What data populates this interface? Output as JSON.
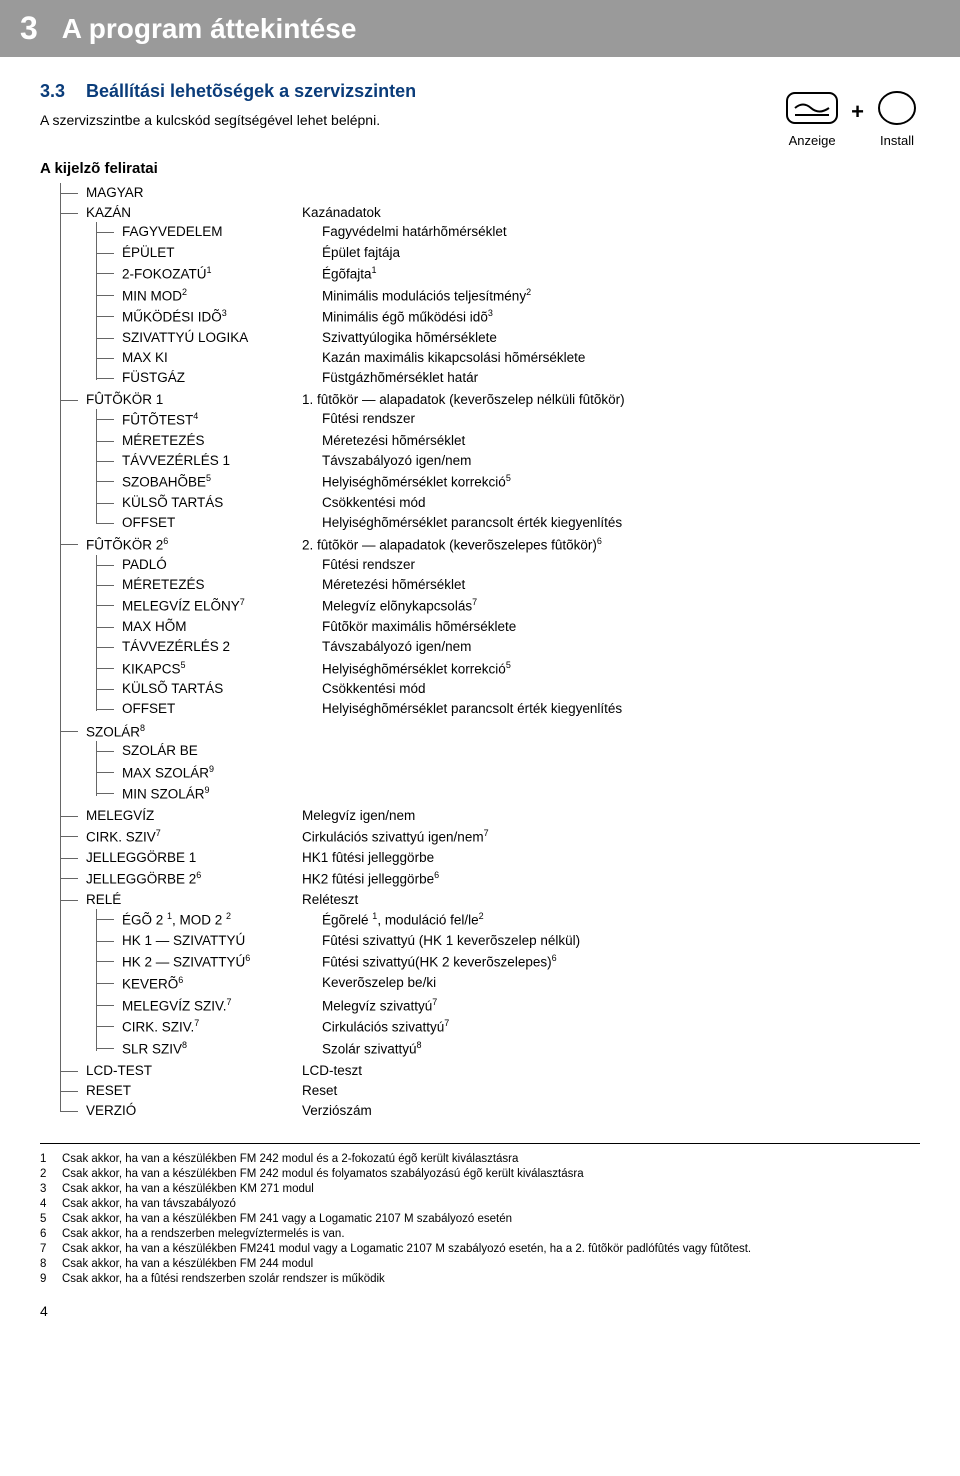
{
  "chapter": {
    "num": "3",
    "title": "A program áttekintése"
  },
  "section": {
    "num": "3.3",
    "title": "Beállítási lehetõségek a szervizszinten"
  },
  "intro": "A szervizszintbe a kulcskód segítségével lehet belépni.",
  "icons": {
    "left_label": "Anzeige",
    "right_label": "Install",
    "plus": "+"
  },
  "subhead": "A kijelzõ feliratai",
  "tree": {
    "magyar": "MAGYAR",
    "kazan": {
      "key": "KAZÁN",
      "val": "Kazánadatok",
      "items": [
        {
          "key": "FAGYVEDELEM",
          "val": "Fagyvédelmi határhõmérséklet"
        },
        {
          "key": "ÉPÜLET",
          "val": "Épület fajtája"
        },
        {
          "key": "2-FOKOZATÚ",
          "key_sup": "1",
          "val": "Égõfajta",
          "val_sup": "1"
        },
        {
          "key": "MIN MOD",
          "key_sup": "2",
          "val": "Minimális modulációs teljesítmény",
          "val_sup": "2"
        },
        {
          "key": "MŰKÖDÉSI IDÕ",
          "key_sup": "3",
          "val": "Minimális égõ működési idõ",
          "val_sup": "3"
        },
        {
          "key": "SZIVATTYÚ LOGIKA",
          "val": "Szivattyúlogika hõmérséklete"
        },
        {
          "key": "MAX KI",
          "val": "Kazán maximális kikapcsolási hõmérséklete"
        },
        {
          "key": "FÜSTGÁZ",
          "val": "Füstgázhõmérséklet határ"
        }
      ]
    },
    "fk1": {
      "key": "FÛTÕKÖR 1",
      "val": "1. fûtõkör — alapadatok (keverõszelep nélküli fûtõkör)",
      "items": [
        {
          "key": "FÛTÕTEST",
          "key_sup": "4",
          "val": "Fûtési rendszer"
        },
        {
          "key": "MÉRETEZÉS",
          "val": "Méretezési hõmérséklet"
        },
        {
          "key": "TÁVVEZÉRLÉS 1",
          "val": "Távszabályozó igen/nem"
        },
        {
          "key": "SZOBAHÕBE",
          "key_sup": "5",
          "val": "Helyiséghõmérséklet korrekció",
          "val_sup": "5"
        },
        {
          "key": "KÜLSÕ TARTÁS",
          "val": "Csökkentési mód"
        },
        {
          "key": "OFFSET",
          "val": "Helyiséghõmérséklet parancsolt érték kiegyenlítés"
        }
      ]
    },
    "fk2": {
      "key": "FÛTÕKÖR 2",
      "key_sup": "6",
      "val": "2. fûtõkör — alapadatok (keverõszelepes fûtõkör)",
      "val_sup": "6",
      "items": [
        {
          "key": "PADLÓ",
          "val": "Fûtési rendszer"
        },
        {
          "key": "MÉRETEZÉS",
          "val": "Méretezési hõmérséklet"
        },
        {
          "key": "MELEGVÍZ ELÕNY",
          "key_sup": "7",
          "val": "Melegvíz elõnykapcsolás",
          "val_sup": "7"
        },
        {
          "key": "MAX HÕM",
          "val": "Fûtõkör maximális hõmérséklete"
        },
        {
          "key": "TÁVVEZÉRLÉS 2",
          "val": "Távszabályozó igen/nem"
        },
        {
          "key": "KIKAPCS",
          "key_sup": "5",
          "val": "Helyiséghõmérséklet korrekció",
          "val_sup": "5"
        },
        {
          "key": "KÜLSÕ TARTÁS",
          "val": "Csökkentési mód"
        },
        {
          "key": "OFFSET",
          "val": "Helyiséghõmérséklet parancsolt érték kiegyenlítés"
        }
      ]
    },
    "szolar": {
      "key": "SZOLÁR",
      "key_sup": "8",
      "items": [
        {
          "key": "SZOLÁR BE"
        },
        {
          "key": "MAX SZOLÁR",
          "key_sup": "9"
        },
        {
          "key": "MIN SZOLÁR",
          "key_sup": "9"
        }
      ]
    },
    "flat": [
      {
        "key": "MELEGVÍZ",
        "val": "Melegvíz igen/nem"
      },
      {
        "key": "CIRK. SZIV",
        "key_sup": "7",
        "val": "Cirkulációs szivattyú igen/nem",
        "val_sup": "7"
      },
      {
        "key": "JELLEGGÖRBE 1",
        "val": "HK1 fûtési jelleggörbe"
      },
      {
        "key": "JELLEGGÖRBE 2",
        "key_sup": "6",
        "val": "HK2 fûtési jelleggörbe",
        "val_sup": "6"
      }
    ],
    "rele": {
      "key": "RELÉ",
      "val": "Reléteszt",
      "items": [
        {
          "key_html": "ÉGÕ 2 <span class=\"sup\">1</span>, MOD 2 <span class=\"sup\">2</span>",
          "val_html": "Égõrelé <span class=\"sup\">1</span>, moduláció fel/le<span class=\"sup\">2</span>"
        },
        {
          "key": "HK 1 — SZIVATTYÚ",
          "val": "Fûtési szivattyú (HK 1 keverõszelep nélkül)"
        },
        {
          "key": "HK 2 — SZIVATTYÚ",
          "key_sup": "6",
          "val": "Fûtési szivattyú(HK 2 keverõszelepes)",
          "val_sup": "6"
        },
        {
          "key": "KEVERÕ",
          "key_sup": "6",
          "val": "Keverõszelep be/ki"
        },
        {
          "key": "MELEGVÍZ SZIV.",
          "key_sup": "7",
          "val": "Melegvíz szivattyú",
          "val_sup": "7"
        },
        {
          "key": "CIRK. SZIV.",
          "key_sup": "7",
          "val": "Cirkulációs szivattyú",
          "val_sup": "7"
        },
        {
          "key": "SLR SZIV",
          "key_sup": "8",
          "val": "Szolár szivattyú",
          "val_sup": "8"
        }
      ]
    },
    "tail": [
      {
        "key": "LCD-TEST",
        "val": "LCD-teszt"
      },
      {
        "key": "RESET",
        "val": "Reset"
      },
      {
        "key": "VERZIÓ",
        "val": "Verziószám"
      }
    ]
  },
  "footnotes": [
    {
      "n": "1",
      "t": "Csak akkor, ha van a készülékben FM 242 modul és a 2-fokozatú égõ került kiválasztásra"
    },
    {
      "n": "2",
      "t": "Csak akkor, ha van a készülékben FM 242 modul és folyamatos szabályozású égõ került kiválasztásra"
    },
    {
      "n": "3",
      "t": "Csak akkor, ha van a készülékben KM 271 modul"
    },
    {
      "n": "4",
      "t": "Csak akkor, ha van távszabályozó"
    },
    {
      "n": "5",
      "t": "Csak akkor, ha van a készülékben FM 241 vagy a Logamatic 2107 M szabályozó esetén"
    },
    {
      "n": "6",
      "t": "Csak akkor, ha a rendszerben melegvíztermelés is van."
    },
    {
      "n": "7",
      "t": "Csak akkor, ha van a készülékben FM241 modul vagy a Logamatic 2107 M szabályozó esetén, ha a 2. fûtõkör padlófûtés vagy fûtõtest."
    },
    {
      "n": "8",
      "t": "Csak akkor, ha van a készülékben FM 244 modul"
    },
    {
      "n": "9",
      "t": "Csak akkor, ha a fûtési rendszerben szolár rendszer is működik"
    }
  ],
  "page_num": "4"
}
